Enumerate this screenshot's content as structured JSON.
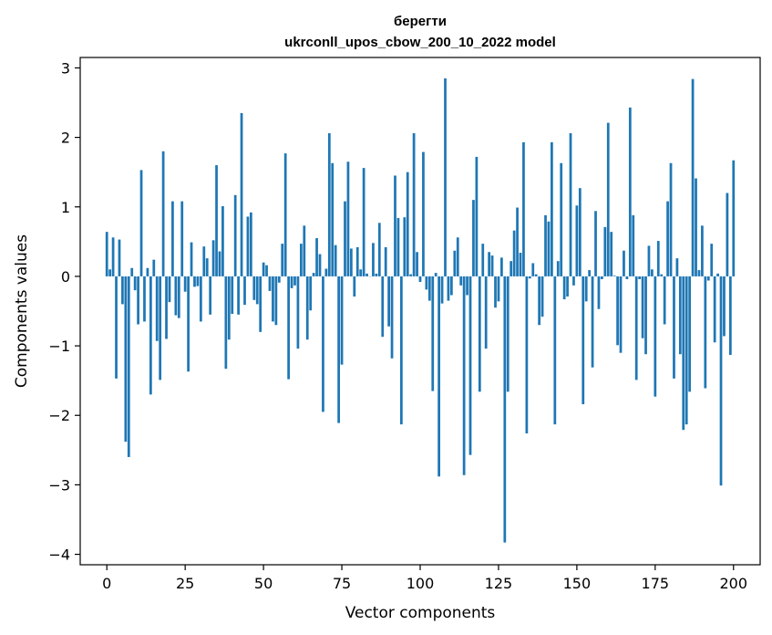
{
  "chart_data": {
    "type": "bar",
    "title_line1": "берегти",
    "title_line2": "ukrconll_upos_cbow_200_10_2022 model",
    "xlabel": "Vector components",
    "ylabel": "Components values",
    "xlim": [
      -8.5,
      208.5
    ],
    "ylim": [
      -4.15,
      3.15
    ],
    "xticks": [
      0,
      25,
      50,
      75,
      100,
      125,
      150,
      175,
      200
    ],
    "yticks": [
      -4,
      -3,
      -2,
      -1,
      0,
      1,
      2,
      3
    ],
    "ytick_labels": [
      "−4",
      "−3",
      "−2",
      "−1",
      "0",
      "1",
      "2",
      "3"
    ],
    "bar_color": "#1f77b4",
    "grid": false,
    "values": [
      0.64,
      0.1,
      0.56,
      -1.47,
      0.53,
      -0.4,
      -2.38,
      -2.6,
      0.12,
      -0.2,
      -0.69,
      1.53,
      -0.65,
      0.12,
      -1.7,
      0.24,
      -0.93,
      -1.49,
      1.8,
      -0.9,
      -0.37,
      1.08,
      -0.56,
      -0.6,
      1.08,
      -0.22,
      -1.37,
      0.49,
      -0.15,
      -0.14,
      -0.65,
      0.43,
      0.26,
      -0.55,
      0.52,
      1.6,
      0.36,
      1.01,
      -1.33,
      -0.91,
      -0.54,
      1.17,
      -0.55,
      2.35,
      -0.41,
      0.86,
      0.92,
      -0.34,
      -0.4,
      -0.8,
      0.2,
      0.16,
      -0.21,
      -0.65,
      -0.7,
      -0.09,
      0.47,
      1.77,
      -1.48,
      -0.17,
      -0.13,
      -1.04,
      0.47,
      0.73,
      -0.91,
      -0.49,
      0.05,
      0.55,
      0.32,
      -1.95,
      0.11,
      2.06,
      1.63,
      0.45,
      -2.11,
      -1.27,
      1.08,
      1.65,
      0.4,
      -0.29,
      0.42,
      0.1,
      1.56,
      0.04,
      0.0,
      0.48,
      0.04,
      0.77,
      -0.87,
      0.42,
      -0.72,
      -1.18,
      1.45,
      0.84,
      -2.13,
      0.85,
      1.5,
      0.03,
      2.06,
      0.35,
      -0.08,
      1.79,
      -0.19,
      -0.35,
      -1.65,
      0.05,
      -2.88,
      -0.39,
      2.85,
      -0.35,
      -0.27,
      0.37,
      0.56,
      -0.13,
      -2.86,
      -0.27,
      -2.57,
      1.1,
      1.72,
      -1.66,
      0.47,
      -1.04,
      0.35,
      0.3,
      -0.45,
      -0.36,
      0.27,
      -3.83,
      -1.66,
      0.22,
      0.66,
      0.99,
      0.34,
      1.93,
      -2.26,
      -0.03,
      0.19,
      0.03,
      -0.7,
      -0.58,
      0.88,
      0.79,
      1.93,
      -2.13,
      0.22,
      1.63,
      -0.33,
      -0.29,
      2.06,
      -0.13,
      1.02,
      1.27,
      -1.84,
      -0.36,
      0.09,
      -1.31,
      0.94,
      -0.47,
      -0.04,
      0.71,
      2.21,
      0.64,
      0.01,
      -0.99,
      -1.1,
      0.37,
      -0.04,
      2.43,
      0.88,
      -1.49,
      -0.04,
      -0.89,
      -1.12,
      0.44,
      0.1,
      -1.73,
      0.51,
      0.03,
      -0.69,
      1.08,
      1.63,
      -1.47,
      0.26,
      -1.12,
      -2.21,
      -2.13,
      -1.66,
      2.84,
      1.41,
      0.09,
      0.73,
      -1.61,
      -0.06,
      0.47,
      -0.95,
      0.04,
      -3.01,
      -0.86,
      1.2,
      -1.13,
      1.67
    ]
  }
}
